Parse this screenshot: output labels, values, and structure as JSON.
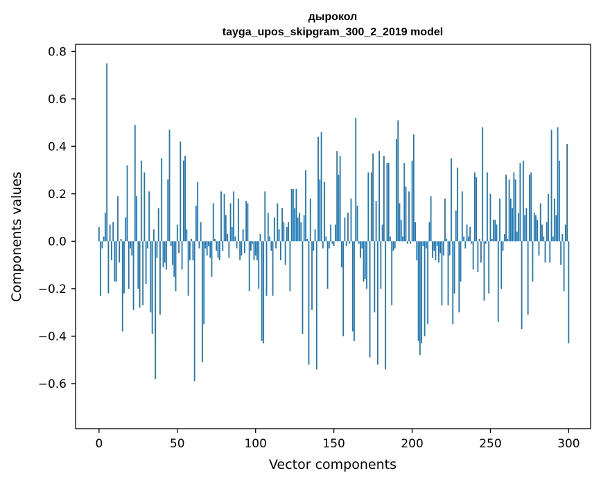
{
  "chart_data": {
    "type": "bar",
    "title": "дырокол",
    "subtitle": "tayga_upos_skipgram_300_2_2019 model",
    "xlabel": "Vector components",
    "ylabel": "Components values",
    "xlim": [
      -15,
      314
    ],
    "ylim": [
      -0.79,
      0.83
    ],
    "xticks": [
      0,
      50,
      100,
      150,
      200,
      250,
      300
    ],
    "yticks": [
      -0.6,
      -0.4,
      -0.2,
      0.0,
      0.2,
      0.4,
      0.6,
      0.8
    ],
    "xtick_labels": [
      "0",
      "50",
      "100",
      "150",
      "200",
      "250",
      "300"
    ],
    "ytick_labels": [
      "−0.6",
      "−0.4",
      "−0.2",
      "0.0",
      "0.2",
      "0.4",
      "0.6",
      "0.8"
    ],
    "values": [
      0.06,
      -0.23,
      -0.03,
      0.02,
      0.12,
      0.75,
      -0.22,
      0.07,
      -0.08,
      0.08,
      -0.17,
      -0.17,
      0.19,
      -0.09,
      0.01,
      -0.38,
      -0.22,
      0.1,
      0.32,
      -0.2,
      -0.03,
      -0.06,
      -0.29,
      0.49,
      0.19,
      -0.2,
      -0.28,
      0.34,
      -0.27,
      0.29,
      -0.18,
      -0.03,
      0.21,
      -0.3,
      -0.39,
      0.05,
      -0.58,
      -0.07,
      0.14,
      -0.31,
      0.35,
      -0.11,
      -0.09,
      -0.12,
      0.26,
      0.47,
      -0.02,
      -0.1,
      -0.15,
      -0.21,
      0.07,
      -0.05,
      0.42,
      -0.12,
      0.34,
      0.36,
      0.05,
      -0.23,
      -0.08,
      0.01,
      -0.08,
      -0.59,
      0.15,
      0.25,
      -0.03,
      0.08,
      -0.51,
      -0.35,
      -0.03,
      -0.06,
      -0.02,
      -0.07,
      -0.15,
      0.16,
      0.01,
      -0.04,
      -0.07,
      -0.08,
      0.21,
      -0.04,
      0.2,
      0.11,
      0.03,
      -0.07,
      0.16,
      0.06,
      0.21,
      0.02,
      -0.03,
      0.18,
      -0.08,
      -0.06,
      0.05,
      -0.05,
      0.17,
      0.16,
      -0.21,
      -0.04,
      -0.01,
      -0.08,
      -0.06,
      -0.08,
      -0.2,
      0.03,
      -0.42,
      -0.43,
      0.21,
      -0.23,
      0.12,
      0.02,
      -0.04,
      -0.23,
      0.1,
      -0.03,
      0.16,
      0.05,
      -0.08,
      0.14,
      0.08,
      -0.1,
      0.06,
      0.08,
      -0.21,
      0.22,
      0.22,
      0.14,
      0.22,
      0.1,
      0.12,
      0.08,
      -0.39,
      0.11,
      0.3,
      0.01,
      -0.52,
      0.18,
      -0.29,
      -0.04,
      0.05,
      -0.54,
      0.44,
      0.26,
      0.46,
      -0.03,
      0.25,
      0.02,
      -0.2,
      -0.03,
      0.07,
      -0.01,
      -0.02,
      0.07,
      0.38,
      0.28,
      0.36,
      -0.11,
      -0.4,
      0.1,
      -0.02,
      0.12,
      -0.01,
      0.18,
      -0.38,
      -0.42,
      0.52,
      0.15,
      -0.01,
      -0.07,
      -0.03,
      -0.17,
      -0.16,
      -0.2,
      0.29,
      -0.49,
      0.29,
      0.37,
      -0.3,
      0.17,
      -0.52,
      0.38,
      -0.2,
      0.07,
      0.36,
      -0.54,
      0.33,
      0.33,
      0.02,
      -0.27,
      -0.04,
      -0.03,
      0.43,
      0.51,
      0.16,
      0.09,
      0.02,
      0.33,
      0.23,
      -0.01,
      0.21,
      -0.01,
      0.34,
      0.45,
      0.08,
      -0.08,
      -0.42,
      -0.48,
      -0.43,
      -0.02,
      -0.4,
      -0.03,
      -0.35,
      0.08,
      0.19,
      -0.07,
      -0.04,
      -0.08,
      -0.02,
      -0.09,
      -0.05,
      -0.27,
      -0.06,
      0.18,
      0.01,
      -0.27,
      -0.06,
      0.35,
      -0.35,
      -0.22,
      0.13,
      0.31,
      -0.3,
      -0.17,
      0.21,
      0.02,
      -0.03,
      0.07,
      0.02,
      0.06,
      -0.01,
      -0.12,
      0.29,
      0.27,
      -0.13,
      0.01,
      -0.09,
      0.48,
      -0.25,
      -0.01,
      0.29,
      -0.22,
      0.2,
      0.01,
      0.09,
      0.09,
      0.07,
      -0.34,
      0.18,
      -0.2,
      -0.04,
      0.03,
      0.28,
      0.01,
      0.26,
      0.18,
      0.14,
      0.29,
      0.26,
      0.04,
      0.12,
      0.33,
      -0.37,
      0.34,
      0.11,
      0.14,
      -0.31,
      0.28,
      0.29,
      -0.17,
      0.12,
      0.11,
      0.09,
      -0.06,
      0.16,
      0.07,
      0.02,
      -0.09,
      0.08,
      0.2,
      -0.09,
      0.47,
      0.02,
      0.18,
      0.11,
      0.48,
      0.34,
      -0.1,
      0.03,
      -0.21,
      0.07,
      0.41,
      -0.43
    ]
  }
}
